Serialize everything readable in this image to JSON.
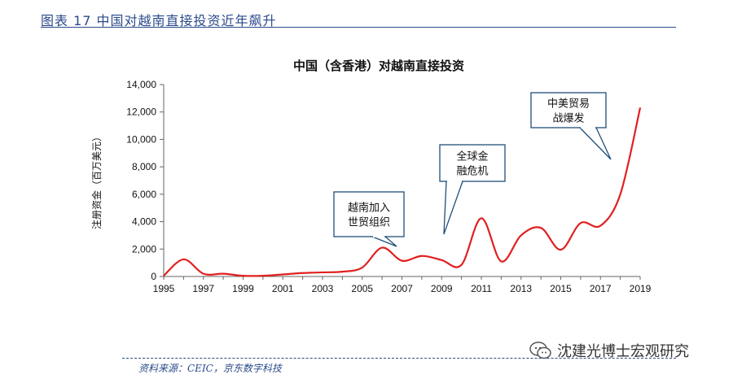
{
  "figure_header": "图表 17 中国对越南直接投资近年飙升",
  "source": "资料来源：CEIC，京东数字科技",
  "watermark": "沈建光博士宏观研究",
  "chart_data": {
    "type": "line",
    "title": "中国（含香港）对越南直接投资",
    "ylabel": "注册资金（百万美元）",
    "xlabel": "",
    "ylim": [
      0,
      14000
    ],
    "xlim": [
      1995,
      2019
    ],
    "y_ticks": [
      0,
      2000,
      4000,
      6000,
      8000,
      10000,
      12000,
      14000
    ],
    "y_tick_labels": [
      "0",
      "2,000",
      "4,000",
      "6,000",
      "8,000",
      "10,000",
      "12,000",
      "14,000"
    ],
    "x_ticks": [
      1995,
      1997,
      1999,
      2001,
      2003,
      2005,
      2007,
      2009,
      2011,
      2013,
      2015,
      2017,
      2019
    ],
    "grid": false,
    "series": [
      {
        "color": "#e02020",
        "points": [
          [
            1995,
            50
          ],
          [
            1996,
            1250
          ],
          [
            1997,
            200
          ],
          [
            1998,
            200
          ],
          [
            1999,
            50
          ],
          [
            2000,
            50
          ],
          [
            2001,
            150
          ],
          [
            2002,
            250
          ],
          [
            2003,
            300
          ],
          [
            2004,
            350
          ],
          [
            2005,
            650
          ],
          [
            2006,
            2100
          ],
          [
            2007,
            1150
          ],
          [
            2008,
            1500
          ],
          [
            2009,
            1200
          ],
          [
            2010,
            850
          ],
          [
            2011,
            4250
          ],
          [
            2012,
            1100
          ],
          [
            2013,
            3000
          ],
          [
            2014,
            3550
          ],
          [
            2015,
            1950
          ],
          [
            2016,
            3900
          ],
          [
            2017,
            3700
          ],
          [
            2018,
            6000
          ],
          [
            2019,
            12300
          ]
        ]
      }
    ],
    "annotations": [
      {
        "lines": [
          "越南加入",
          "世贸组织"
        ]
      },
      {
        "lines": [
          "全球金",
          "融危机"
        ]
      },
      {
        "lines": [
          "中美贸易",
          "战爆发"
        ]
      }
    ]
  }
}
